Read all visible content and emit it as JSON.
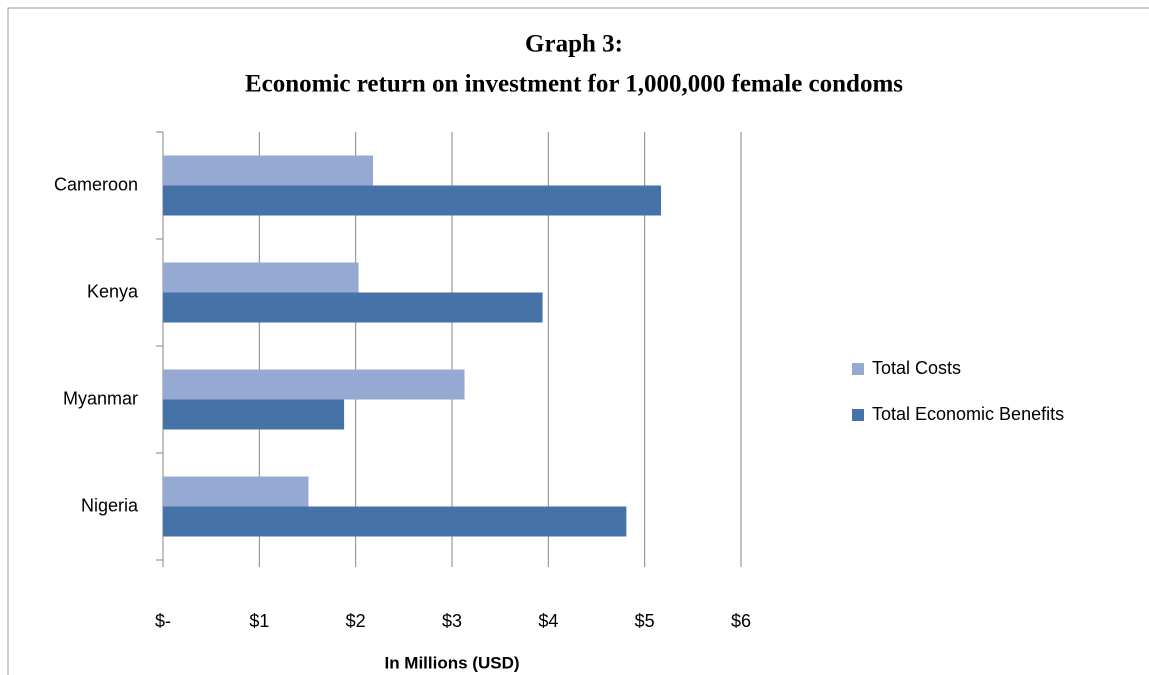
{
  "chart_data": {
    "type": "barh",
    "title": [
      "Graph 3:",
      "Economic return on investment for 1,000,000 female condoms"
    ],
    "categories": [
      "Cameroon",
      "Kenya",
      "Myanmar",
      "Nigeria"
    ],
    "series": [
      {
        "name": "Total Costs",
        "color": "#95a9d3",
        "values": [
          2.18,
          2.03,
          3.13,
          1.51
        ]
      },
      {
        "name": "Total Economic Benefits",
        "color": "#4573a7",
        "values": [
          5.17,
          3.94,
          1.88,
          4.81
        ]
      }
    ],
    "xlabel": "In Millions (USD)",
    "xlim": [
      0,
      6
    ],
    "xticks": [
      {
        "value": 0,
        "label": "$-"
      },
      {
        "value": 1,
        "label": "$1"
      },
      {
        "value": 2,
        "label": "$2"
      },
      {
        "value": 3,
        "label": "$3"
      },
      {
        "value": 4,
        "label": "$4"
      },
      {
        "value": 5,
        "label": "$5"
      },
      {
        "value": 6,
        "label": "$6"
      }
    ],
    "grid": true,
    "legend": "right"
  }
}
